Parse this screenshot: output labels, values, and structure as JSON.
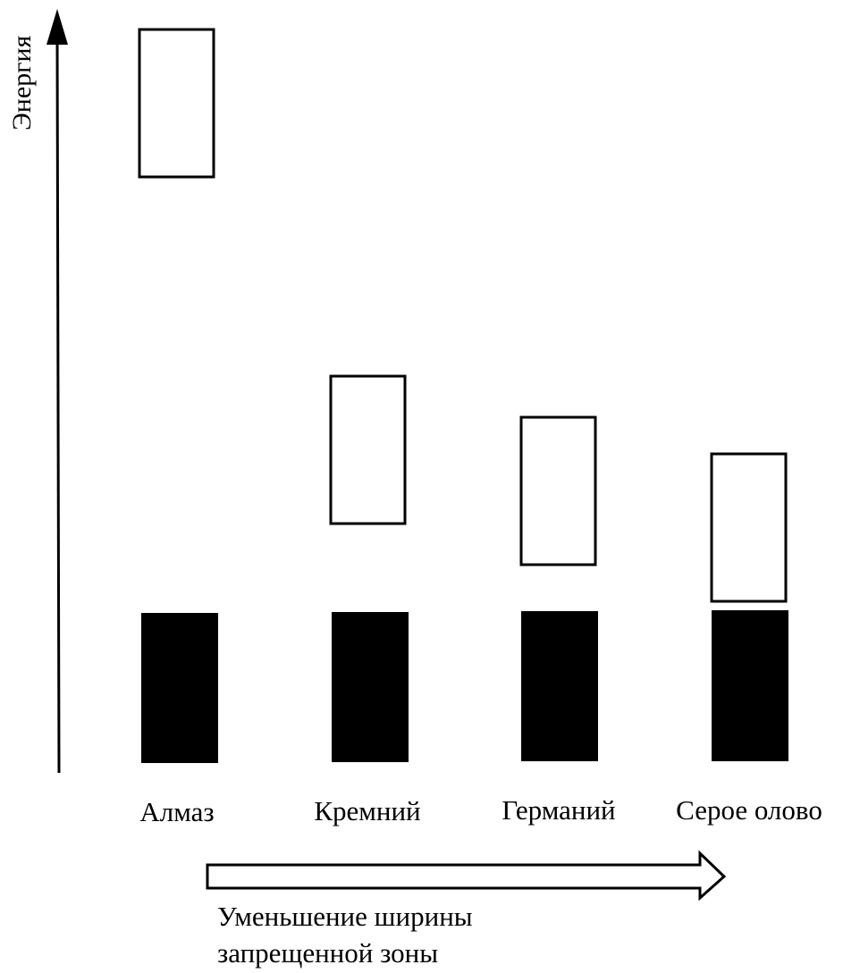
{
  "y_axis_label": "Энергия",
  "materials": [
    {
      "name": "Алмаз"
    },
    {
      "name": "Кремний"
    },
    {
      "name": "Германий"
    },
    {
      "name": "Серое олово"
    }
  ],
  "caption_lines": [
    "Уменьшение ширины",
    "запрещенной зоны"
  ],
  "legend_meaning": {
    "filled_block": "valence-band",
    "outline_block": "conduction-band"
  },
  "colors": {
    "ink": "#000000",
    "background": "#ffffff"
  }
}
